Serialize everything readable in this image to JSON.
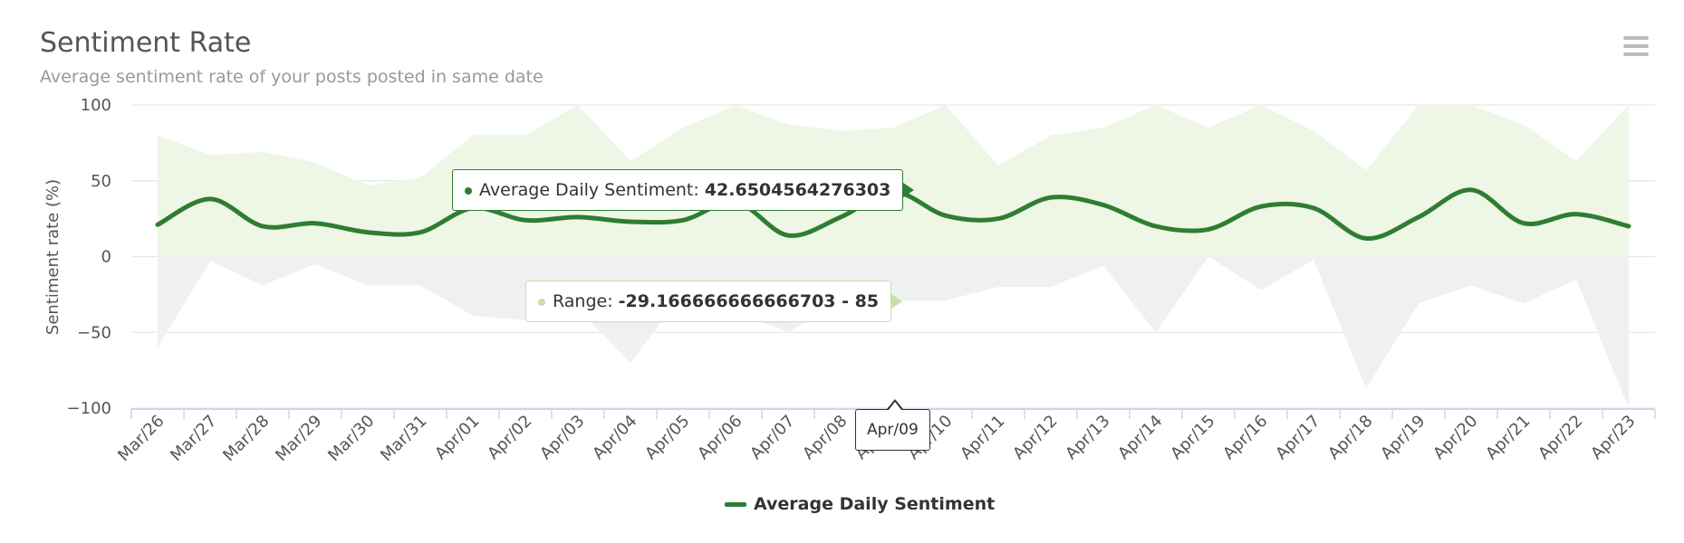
{
  "chart_data": {
    "type": "line",
    "title": "Sentiment Rate",
    "subtitle": "Average sentiment rate of your posts posted in same date",
    "ylabel": "Sentiment rate (%)",
    "xlabel": "",
    "ylim": [
      -100,
      100
    ],
    "yticks": [
      100,
      50,
      0,
      -50,
      -100
    ],
    "grid": true,
    "legend_position": "bottom-center",
    "categories": [
      "Mar/26",
      "Mar/27",
      "Mar/28",
      "Mar/29",
      "Mar/30",
      "Mar/31",
      "Apr/01",
      "Apr/02",
      "Apr/03",
      "Apr/04",
      "Apr/05",
      "Apr/06",
      "Apr/07",
      "Apr/08",
      "Apr/09",
      "Apr/10",
      "Apr/11",
      "Apr/12",
      "Apr/13",
      "Apr/14",
      "Apr/15",
      "Apr/16",
      "Apr/17",
      "Apr/18",
      "Apr/19",
      "Apr/20",
      "Apr/21",
      "Apr/22",
      "Apr/23"
    ],
    "series": [
      {
        "name": "Average Daily Sentiment",
        "type": "spline",
        "color": "#2e7d32",
        "values": [
          21,
          38,
          20,
          22,
          16,
          16,
          32,
          24,
          26,
          23,
          24,
          36,
          14,
          26,
          42.65,
          27,
          25,
          39,
          34,
          20,
          18,
          33,
          32,
          12,
          26,
          44,
          22,
          28,
          20
        ]
      },
      {
        "type": "arearange",
        "color": "#c5e1a5",
        "negative_color": "#e6e8eb",
        "low": [
          -60,
          -3,
          -19,
          -5,
          -19,
          -19,
          -39,
          -42,
          -35,
          -70,
          -24,
          -36,
          -50,
          -30,
          -29.1667,
          -29,
          -20,
          -20,
          -6,
          -50,
          0,
          -22,
          -2,
          -87,
          -31,
          -19,
          -31,
          -15,
          -100
        ],
        "high": [
          80,
          67,
          69,
          62,
          47,
          52,
          80,
          80,
          100,
          63,
          85,
          100,
          87,
          83,
          85,
          100,
          60,
          80,
          85,
          100,
          85,
          100,
          83,
          57,
          100,
          100,
          87,
          63,
          100
        ]
      }
    ],
    "tooltip": {
      "category": "Apr/09",
      "series_label": "Average Daily Sentiment: ",
      "series_value": "42.6504564276303",
      "range_label": "Range: ",
      "range_value": "-29.166666666666703 - 85"
    }
  },
  "ui": {
    "menu_icon": "hamburger-icon",
    "legend_label": "Average Daily Sentiment"
  }
}
